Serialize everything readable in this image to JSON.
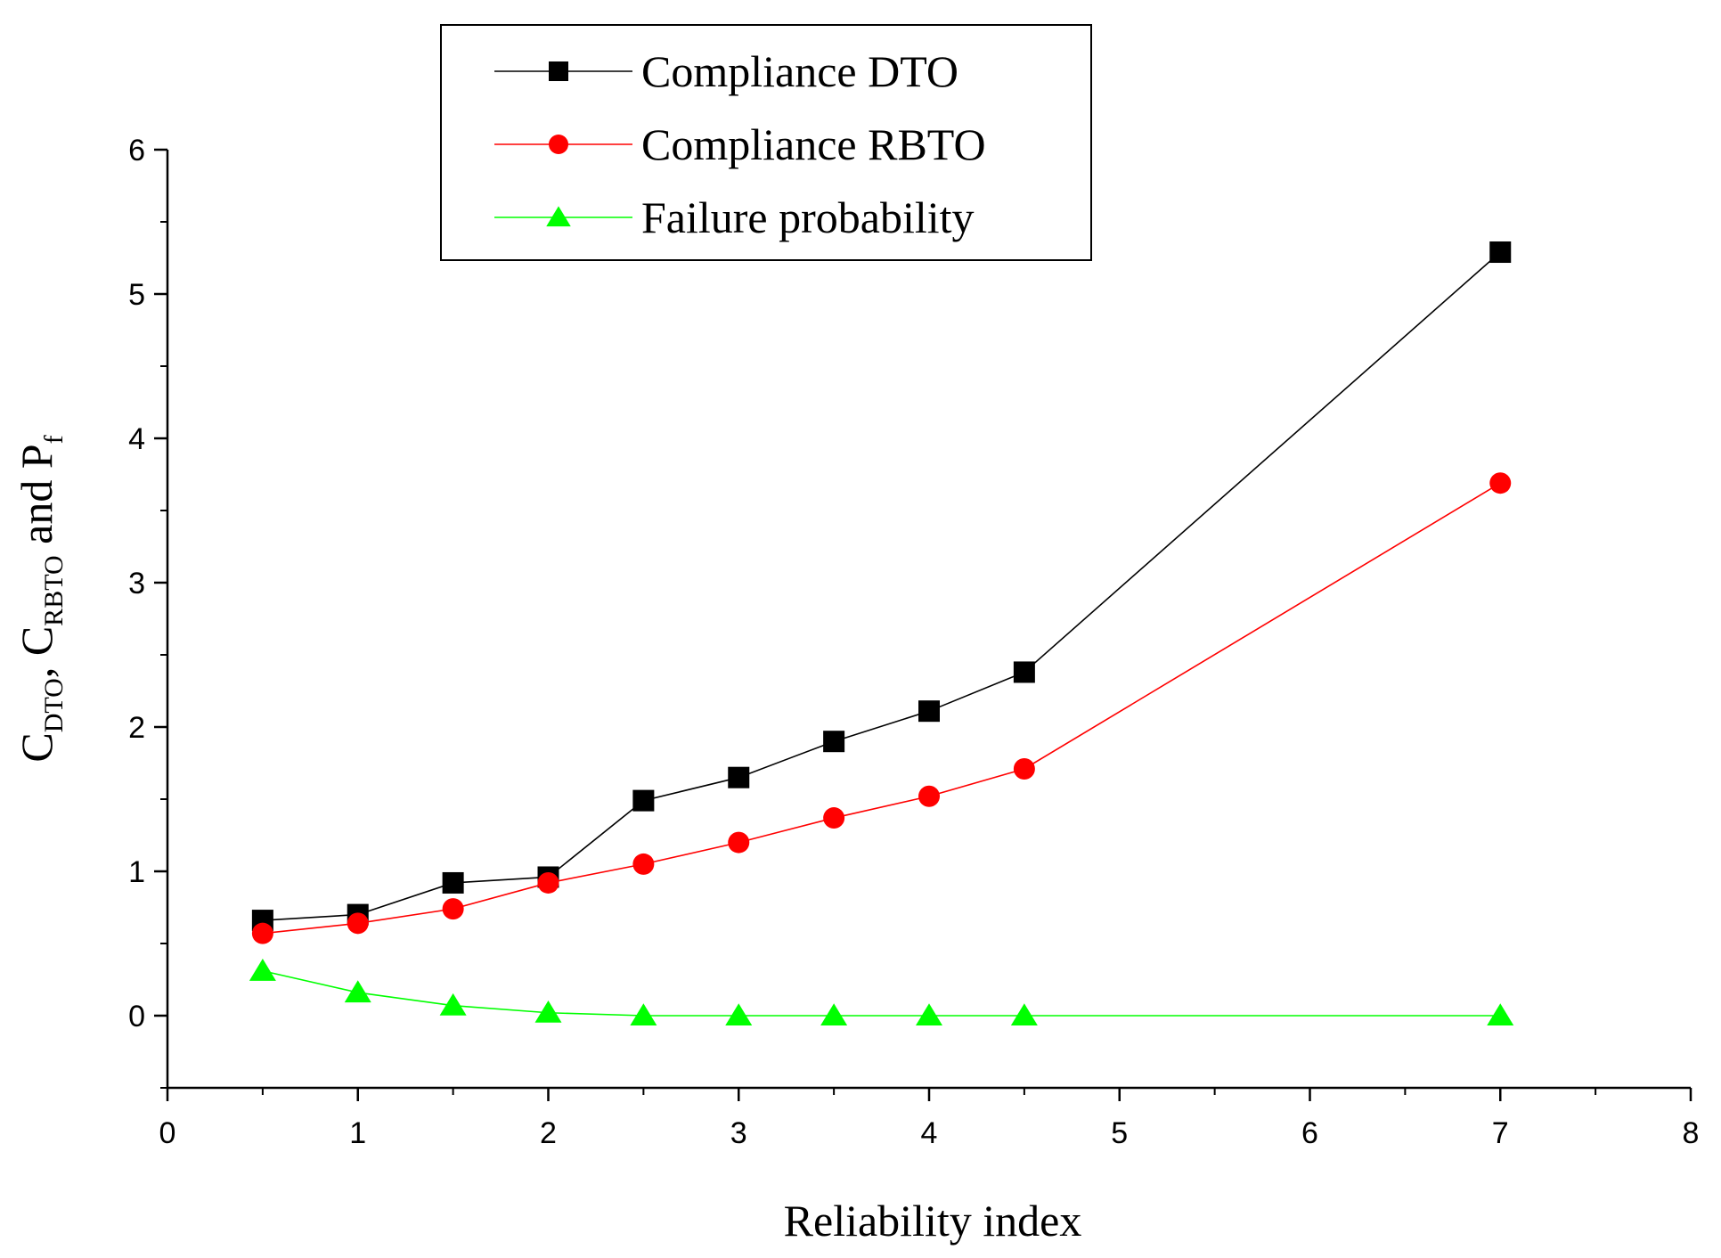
{
  "chart_data": {
    "type": "line",
    "xlabel": "Reliability index",
    "ylabel": {
      "c1": "C",
      "sub1": "DTO",
      "sep": ", ",
      "c2": "C",
      "sub2": "RBTO",
      "and": " and ",
      "p": "P",
      "sub3": "f"
    },
    "xlim": [
      0,
      8
    ],
    "ylim": [
      -0.5,
      6
    ],
    "xticks": [
      0,
      1,
      2,
      3,
      4,
      5,
      6,
      7,
      8
    ],
    "yticks": [
      0,
      1,
      2,
      3,
      4,
      5,
      6
    ],
    "x": [
      0.5,
      1,
      1.5,
      2,
      2.5,
      3,
      3.5,
      4,
      4.5,
      7
    ],
    "series": [
      {
        "name": "Compliance DTO",
        "marker": "square",
        "color": "#000000",
        "values": [
          0.66,
          0.7,
          0.92,
          0.96,
          1.49,
          1.65,
          1.9,
          2.11,
          2.38,
          5.29
        ]
      },
      {
        "name": "Compliance RBTO",
        "marker": "circle",
        "color": "#ff0000",
        "values": [
          0.57,
          0.64,
          0.74,
          0.92,
          1.05,
          1.2,
          1.37,
          1.52,
          1.71,
          3.69
        ]
      },
      {
        "name": "Failure probability",
        "marker": "triangle",
        "color": "#00ff00",
        "values": [
          0.31,
          0.16,
          0.07,
          0.02,
          0.0,
          0.0,
          0.0,
          0.0,
          0.0,
          0.0
        ]
      }
    ],
    "legend_position": "top-center"
  }
}
